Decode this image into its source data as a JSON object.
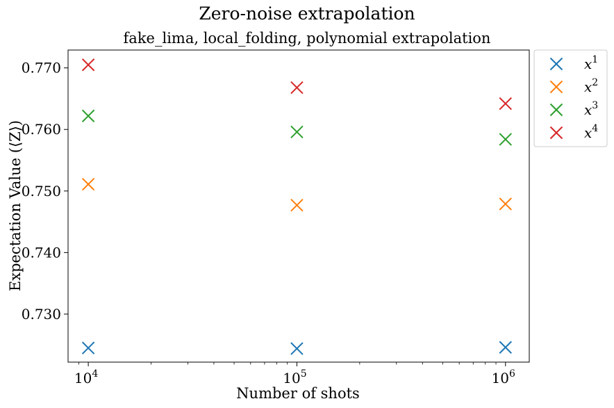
{
  "chart_data": {
    "type": "scatter",
    "title": "Zero-noise extrapolation",
    "subtitle": "fake_lima, local_folding, polynomial extrapolation",
    "xlabel": "Number of shots",
    "ylabel": "Expectation Value (⟨Z⟩)",
    "x_scale": "log",
    "x": [
      10000,
      100000,
      1000000
    ],
    "x_tick_labels": [
      {
        "value": 10000,
        "base": "10",
        "exp": "4"
      },
      {
        "value": 100000,
        "base": "10",
        "exp": "5"
      },
      {
        "value": 1000000,
        "base": "10",
        "exp": "6"
      }
    ],
    "xlim": [
      8000,
      1300000
    ],
    "ylim": [
      0.7222,
      0.7729
    ],
    "y_ticks": [
      0.73,
      0.74,
      0.75,
      0.76,
      0.77
    ],
    "y_tick_labels": [
      "0.730",
      "0.740",
      "0.750",
      "0.760",
      "0.770"
    ],
    "marker": "x",
    "grid": false,
    "legend_position": "outside-top-right",
    "series": [
      {
        "name": "x",
        "exp": "1",
        "color": "#1f77b4",
        "values": [
          0.7245,
          0.7244,
          0.7246
        ]
      },
      {
        "name": "x",
        "exp": "2",
        "color": "#ff7f0e",
        "values": [
          0.7511,
          0.7477,
          0.7479
        ]
      },
      {
        "name": "x",
        "exp": "3",
        "color": "#2ca02c",
        "values": [
          0.7622,
          0.7596,
          0.7584
        ]
      },
      {
        "name": "x",
        "exp": "4",
        "color": "#d62728",
        "values": [
          0.7705,
          0.7668,
          0.7642
        ]
      }
    ]
  }
}
